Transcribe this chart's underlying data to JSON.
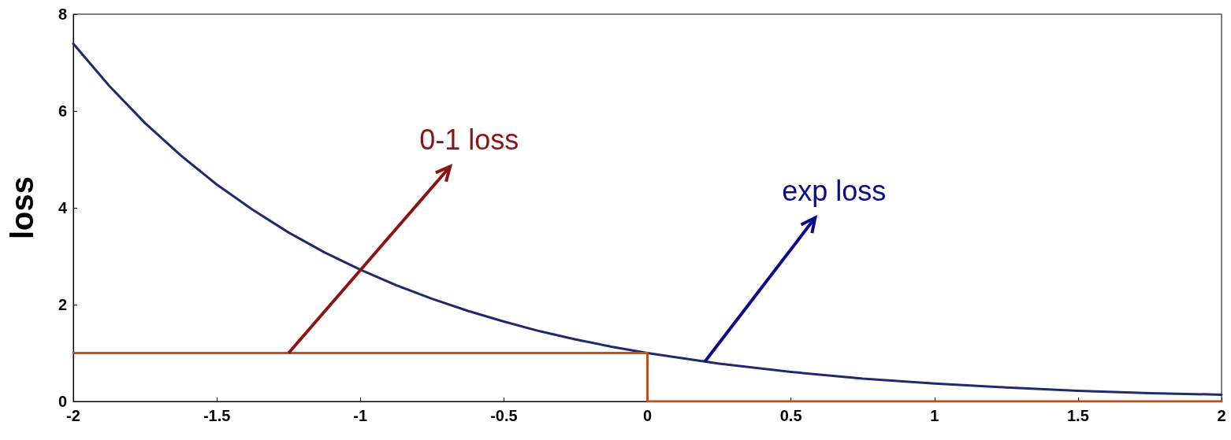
{
  "chart_data": {
    "type": "line",
    "ylabel": "loss",
    "xlim": [
      -2,
      2
    ],
    "xticks": [
      -2,
      -1.5,
      -1,
      -0.5,
      0,
      0.5,
      1,
      1.5,
      2
    ],
    "ylim": [
      0,
      8
    ],
    "yticks": [
      0,
      2,
      4,
      6,
      8
    ],
    "grid": false,
    "marker": "none",
    "line_style": "solid",
    "series": [
      {
        "color": "#1f2a6b",
        "x": [
          -2,
          -1.875,
          -1.75,
          -1.625,
          -1.5,
          -1.375,
          -1.25,
          -1.125,
          -1,
          -0.875,
          -0.75,
          -0.625,
          -0.5,
          -0.375,
          -0.25,
          -0.125,
          0,
          0.25,
          0.5,
          0.75,
          1,
          1.25,
          1.5,
          1.75,
          2
        ],
        "values": [
          7.39,
          6.52,
          5.75,
          5.08,
          4.48,
          3.96,
          3.49,
          3.08,
          2.72,
          2.4,
          2.12,
          1.87,
          1.65,
          1.45,
          1.28,
          1.13,
          1,
          0.78,
          0.61,
          0.47,
          0.37,
          0.29,
          0.22,
          0.17,
          0.14
        ]
      },
      {
        "color": "#b8531f",
        "x": [
          -2,
          0,
          0,
          2
        ],
        "values": [
          1,
          1,
          0,
          0
        ]
      }
    ],
    "annotations": [
      {
        "text": "0-1 loss",
        "x": -1.25,
        "y": 1
      },
      {
        "text": "exp loss",
        "x": 0.2,
        "y": 0.82
      }
    ]
  }
}
